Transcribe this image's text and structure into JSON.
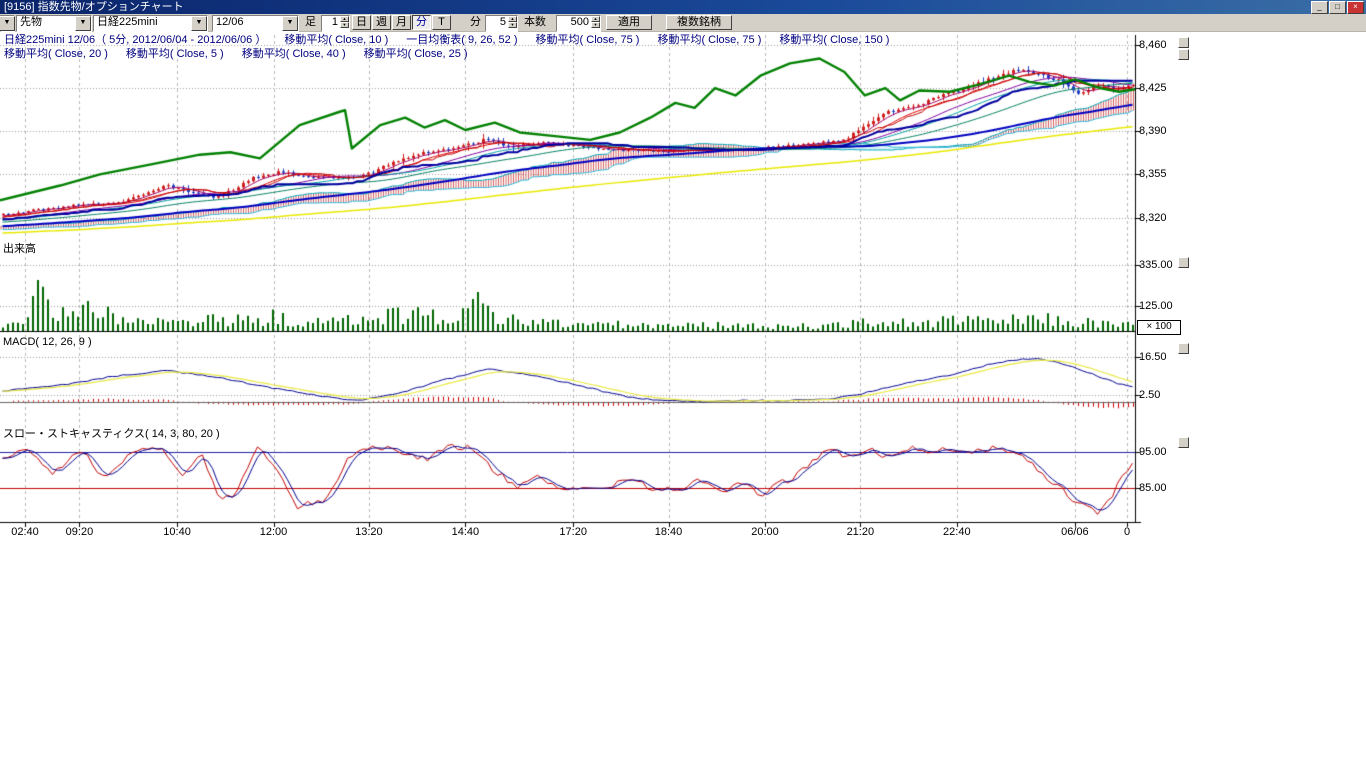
{
  "window": {
    "title": "[9156] 指数先物/オプションチャート"
  },
  "toolbar": {
    "symbol_type": "先物",
    "symbol": "日経225mini",
    "contract_month": "12/06",
    "bar_label": "足",
    "bar_multiplier": "1",
    "period_buttons": [
      {
        "label": "日",
        "active": false
      },
      {
        "label": "週",
        "active": false
      },
      {
        "label": "月",
        "active": false
      },
      {
        "label": "分",
        "active": true
      },
      {
        "label": "T",
        "active": false
      }
    ],
    "minute_label": "分",
    "minute_value": "5",
    "bars_label": "本数",
    "bars_value": "500",
    "apply_label": "適用",
    "multi_symbol_label": "複数銘柄"
  },
  "legend": {
    "row1": [
      "日経225mini 12/06（ 5分, 2012/06/04 - 2012/06/06 ）",
      "移動平均( Close, 10 )",
      "一目均衡表( 9, 26, 52 )",
      "移動平均( Close, 75 )",
      "移動平均( Close, 75 )",
      "移動平均( Close, 150 )"
    ],
    "row2": [
      "移動平均( Close, 20 )",
      "移動平均( Close, 5 )",
      "移動平均( Close, 40 )",
      "移動平均( Close, 25 )"
    ]
  },
  "panes": {
    "volume_label": "出来高",
    "volume_scale_note": "× 100",
    "macd_label": "MACD( 12, 26, 9 )",
    "stoch_label": "スロー・ストキャスティクス( 14, 3, 80, 20 )"
  },
  "axes": {
    "price_labels": [
      "8,460",
      "8,425",
      "8,390",
      "8,355",
      "8,320"
    ],
    "price_values": [
      8460,
      8425,
      8390,
      8355,
      8320
    ],
    "volume_labels": [
      "335.00",
      "125.00"
    ],
    "volume_values": [
      335,
      125
    ],
    "macd_labels": [
      "16.50",
      "2.50"
    ],
    "macd_values": [
      16.5,
      2.5
    ],
    "stoch_labels": [
      "95.00",
      "85.00"
    ],
    "stoch_values": [
      95,
      85
    ],
    "time_labels": [
      "02:40",
      "09:20",
      "10:40",
      "12:00",
      "13:20",
      "14:40",
      "17:20",
      "18:40",
      "20:00",
      "21:20",
      "22:40",
      "06/06",
      "0"
    ],
    "time_fracs": [
      0.022,
      0.07,
      0.156,
      0.241,
      0.325,
      0.41,
      0.505,
      0.589,
      0.674,
      0.758,
      0.843,
      0.947,
      0.993
    ]
  },
  "chart_data": {
    "type": "candlestick",
    "title": "日経225mini 12/06 5分足",
    "bars": 227,
    "ylim_price": [
      8297,
      8468
    ],
    "ylim_volume": [
      0,
      380
    ],
    "ylim_macd": [
      -9.3,
      19.1
    ],
    "ylim_stoch": [
      76.1,
      97.5
    ],
    "close_waypoints": [
      [
        0,
        8322
      ],
      [
        0.03,
        8326
      ],
      [
        0.06,
        8330
      ],
      [
        0.09,
        8331
      ],
      [
        0.11,
        8334
      ],
      [
        0.13,
        8340
      ],
      [
        0.145,
        8346
      ],
      [
        0.16,
        8342
      ],
      [
        0.185,
        8336
      ],
      [
        0.2,
        8341
      ],
      [
        0.22,
        8352
      ],
      [
        0.245,
        8357
      ],
      [
        0.27,
        8353
      ],
      [
        0.3,
        8352
      ],
      [
        0.325,
        8356
      ],
      [
        0.345,
        8365
      ],
      [
        0.37,
        8372
      ],
      [
        0.4,
        8376
      ],
      [
        0.418,
        8381
      ],
      [
        0.428,
        8384
      ],
      [
        0.45,
        8377
      ],
      [
        0.47,
        8381
      ],
      [
        0.5,
        8379
      ],
      [
        0.53,
        8376
      ],
      [
        0.56,
        8374
      ],
      [
        0.59,
        8374
      ],
      [
        0.62,
        8376
      ],
      [
        0.65,
        8375
      ],
      [
        0.68,
        8377
      ],
      [
        0.71,
        8379
      ],
      [
        0.73,
        8381
      ],
      [
        0.748,
        8385
      ],
      [
        0.757,
        8391
      ],
      [
        0.784,
        8406
      ],
      [
        0.81,
        8411
      ],
      [
        0.828,
        8418
      ],
      [
        0.854,
        8426
      ],
      [
        0.881,
        8435
      ],
      [
        0.898,
        8440
      ],
      [
        0.916,
        8436
      ],
      [
        0.934,
        8431
      ],
      [
        0.951,
        8420
      ],
      [
        0.969,
        8428
      ],
      [
        0.987,
        8424
      ],
      [
        1,
        8428
      ]
    ],
    "pre_history": [
      [
        -0.75,
        8298
      ],
      [
        -0.45,
        8304
      ],
      [
        -0.2,
        8312
      ],
      [
        -0.05,
        8318
      ],
      [
        0,
        8322
      ]
    ],
    "wick_profile": [
      [
        0,
        1.2
      ],
      [
        0.15,
        1.4
      ],
      [
        0.185,
        2.6
      ],
      [
        0.22,
        1.3
      ],
      [
        0.3,
        1.4
      ],
      [
        0.34,
        2.2
      ],
      [
        0.37,
        1.6
      ],
      [
        0.41,
        2.4
      ],
      [
        0.43,
        2.6
      ],
      [
        0.47,
        1.4
      ],
      [
        0.55,
        1
      ],
      [
        0.65,
        1
      ],
      [
        0.72,
        1.2
      ],
      [
        0.76,
        1.8
      ],
      [
        0.78,
        2.4
      ],
      [
        0.83,
        1.8
      ],
      [
        0.87,
        2.6
      ],
      [
        0.9,
        2
      ],
      [
        0.93,
        1.6
      ],
      [
        0.96,
        1.8
      ],
      [
        1,
        1.4
      ]
    ],
    "overlay_line": {
      "name": "second-symbol-close-line",
      "points": [
        [
          0,
          8334
        ],
        [
          0.053,
          8346
        ],
        [
          0.088,
          8355
        ],
        [
          0.132,
          8363
        ],
        [
          0.176,
          8371
        ],
        [
          0.203,
          8373
        ],
        [
          0.229,
          8368
        ],
        [
          0.264,
          8395
        ],
        [
          0.3,
          8406
        ],
        [
          0.304,
          8407
        ],
        [
          0.31,
          8376
        ],
        [
          0.335,
          8395
        ],
        [
          0.357,
          8401
        ],
        [
          0.374,
          8393
        ],
        [
          0.392,
          8399
        ],
        [
          0.41,
          8391
        ],
        [
          0.436,
          8397
        ],
        [
          0.458,
          8389
        ],
        [
          0.489,
          8386
        ],
        [
          0.52,
          8383
        ],
        [
          0.546,
          8389
        ],
        [
          0.573,
          8401
        ],
        [
          0.595,
          8413
        ],
        [
          0.612,
          8409
        ],
        [
          0.63,
          8425
        ],
        [
          0.648,
          8419
        ],
        [
          0.67,
          8435
        ],
        [
          0.696,
          8445
        ],
        [
          0.722,
          8449
        ],
        [
          0.744,
          8438
        ],
        [
          0.762,
          8419
        ],
        [
          0.78,
          8425
        ],
        [
          0.793,
          8415
        ],
        [
          0.81,
          8423
        ],
        [
          0.837,
          8422
        ],
        [
          0.863,
          8428
        ],
        [
          0.889,
          8435
        ],
        [
          0.907,
          8430
        ],
        [
          0.929,
          8427
        ],
        [
          0.947,
          8432
        ],
        [
          0.969,
          8425
        ],
        [
          0.986,
          8422
        ],
        [
          1,
          8424
        ]
      ]
    },
    "moving_averages": [
      {
        "period": 5,
        "color": "#a00060",
        "width": 1
      },
      {
        "period": 10,
        "color": "#e00000",
        "width": 1
      },
      {
        "period": 20,
        "color": "#8000a0",
        "width": 1
      },
      {
        "period": 25,
        "color": "#00a0a0",
        "width": 1
      },
      {
        "period": 40,
        "color": "#008060",
        "width": 1
      },
      {
        "period": 75,
        "color": "#0000c0",
        "width": 2
      },
      {
        "period": 150,
        "color": "#e8e800",
        "width": 1.5
      }
    ],
    "ichimoku": {
      "tenkan": 9,
      "kijun": 26,
      "senkou": 52
    },
    "volume_waypoints": [
      [
        0,
        30
      ],
      [
        0.02,
        60
      ],
      [
        0.033,
        300
      ],
      [
        0.045,
        90
      ],
      [
        0.06,
        140
      ],
      [
        0.075,
        150
      ],
      [
        0.09,
        110
      ],
      [
        0.105,
        75
      ],
      [
        0.12,
        85
      ],
      [
        0.135,
        65
      ],
      [
        0.155,
        55
      ],
      [
        0.175,
        75
      ],
      [
        0.195,
        60
      ],
      [
        0.215,
        70
      ],
      [
        0.24,
        85
      ],
      [
        0.265,
        50
      ],
      [
        0.29,
        55
      ],
      [
        0.315,
        75
      ],
      [
        0.335,
        95
      ],
      [
        0.355,
        105
      ],
      [
        0.375,
        95
      ],
      [
        0.395,
        85
      ],
      [
        0.41,
        115
      ],
      [
        0.422,
        200
      ],
      [
        0.435,
        90
      ],
      [
        0.45,
        70
      ],
      [
        0.465,
        60
      ],
      [
        0.485,
        50
      ],
      [
        0.505,
        40
      ],
      [
        0.525,
        45
      ],
      [
        0.545,
        40
      ],
      [
        0.57,
        35
      ],
      [
        0.59,
        30
      ],
      [
        0.615,
        38
      ],
      [
        0.64,
        34
      ],
      [
        0.665,
        30
      ],
      [
        0.69,
        34
      ],
      [
        0.715,
        30
      ],
      [
        0.74,
        42
      ],
      [
        0.765,
        50
      ],
      [
        0.79,
        55
      ],
      [
        0.81,
        45
      ],
      [
        0.83,
        58
      ],
      [
        0.85,
        68
      ],
      [
        0.87,
        60
      ],
      [
        0.89,
        62
      ],
      [
        0.905,
        70
      ],
      [
        0.92,
        78
      ],
      [
        0.935,
        60
      ],
      [
        0.95,
        55
      ],
      [
        0.965,
        50
      ],
      [
        0.98,
        45
      ],
      [
        1,
        40
      ]
    ],
    "macd_waypoints": [
      [
        0,
        4
      ],
      [
        0.05,
        6
      ],
      [
        0.1,
        9.5
      ],
      [
        0.145,
        11.5
      ],
      [
        0.19,
        9
      ],
      [
        0.24,
        5
      ],
      [
        0.29,
        1.5
      ],
      [
        0.315,
        0.5
      ],
      [
        0.35,
        3
      ],
      [
        0.39,
        8
      ],
      [
        0.43,
        12
      ],
      [
        0.46,
        10.5
      ],
      [
        0.5,
        7
      ],
      [
        0.55,
        2
      ],
      [
        0.58,
        0.5
      ],
      [
        0.62,
        0
      ],
      [
        0.66,
        0.5
      ],
      [
        0.7,
        0.5
      ],
      [
        0.73,
        1
      ],
      [
        0.76,
        3
      ],
      [
        0.8,
        7
      ],
      [
        0.84,
        10
      ],
      [
        0.88,
        14.5
      ],
      [
        0.91,
        16
      ],
      [
        0.93,
        15
      ],
      [
        0.96,
        11
      ],
      [
        0.985,
        7
      ],
      [
        1,
        5.5
      ]
    ],
    "stoch_k_waypoints": [
      [
        0,
        93
      ],
      [
        0.02,
        96
      ],
      [
        0.045,
        89
      ],
      [
        0.07,
        96
      ],
      [
        0.09,
        87
      ],
      [
        0.115,
        95
      ],
      [
        0.14,
        96
      ],
      [
        0.16,
        88
      ],
      [
        0.175,
        95
      ],
      [
        0.19,
        83
      ],
      [
        0.205,
        82
      ],
      [
        0.225,
        97
      ],
      [
        0.245,
        90
      ],
      [
        0.26,
        80
      ],
      [
        0.285,
        81
      ],
      [
        0.305,
        93
      ],
      [
        0.325,
        97
      ],
      [
        0.355,
        95
      ],
      [
        0.375,
        93
      ],
      [
        0.395,
        97
      ],
      [
        0.415,
        96
      ],
      [
        0.435,
        90
      ],
      [
        0.455,
        85
      ],
      [
        0.475,
        88
      ],
      [
        0.495,
        84
      ],
      [
        0.515,
        86
      ],
      [
        0.535,
        85
      ],
      [
        0.555,
        88
      ],
      [
        0.575,
        85
      ],
      [
        0.595,
        84
      ],
      [
        0.615,
        87
      ],
      [
        0.635,
        84
      ],
      [
        0.655,
        86
      ],
      [
        0.67,
        83
      ],
      [
        0.685,
        86
      ],
      [
        0.7,
        88
      ],
      [
        0.715,
        92
      ],
      [
        0.73,
        96
      ],
      [
        0.75,
        93
      ],
      [
        0.765,
        96
      ],
      [
        0.78,
        94
      ],
      [
        0.8,
        96
      ],
      [
        0.82,
        95
      ],
      [
        0.84,
        96
      ],
      [
        0.86,
        95
      ],
      [
        0.88,
        96
      ],
      [
        0.9,
        94
      ],
      [
        0.92,
        89
      ],
      [
        0.94,
        84
      ],
      [
        0.955,
        80
      ],
      [
        0.97,
        78
      ],
      [
        0.982,
        83
      ],
      [
        0.992,
        89
      ],
      [
        1,
        91
      ]
    ],
    "stoch_lines": [
      {
        "value": 95,
        "color": "#2020a0"
      },
      {
        "value": 85,
        "color": "#c00000"
      }
    ],
    "colors": {
      "up": "#d02020",
      "down": "#2040c0",
      "volume": "#006600",
      "overlay": "#008000",
      "macd_line": "#000090",
      "macd_signal": "#e8e840",
      "macd_hist": "#d00000",
      "stoch_k": "#c00000",
      "stoch_d": "#000090",
      "grid": "#9a9a9a",
      "vgrid": "#b8b8b8",
      "cloud_hatch": "#d05050",
      "cloud_fill": "#bfeaf2",
      "tenkan": "#c00000",
      "kijun": "#0000a0",
      "span_a": "#00a8b8",
      "span_b": "#30b8d8"
    }
  }
}
